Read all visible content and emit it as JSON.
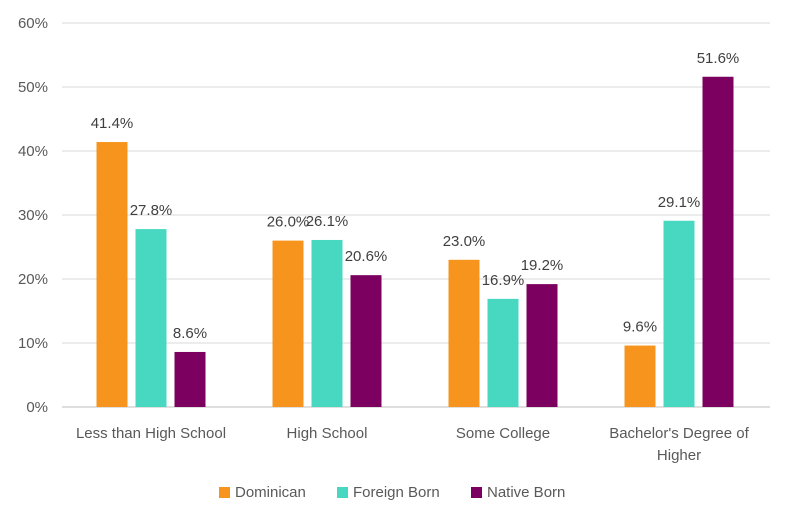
{
  "chart_data": {
    "type": "bar",
    "categories": [
      [
        "Less than High School"
      ],
      [
        "High School"
      ],
      [
        "Some College"
      ],
      [
        "Bachelor's  Degree of",
        "Higher"
      ]
    ],
    "series": [
      {
        "name": "Dominican",
        "color": "#F7941D",
        "values": [
          41.4,
          26.0,
          23.0,
          9.6
        ],
        "labels": [
          "41.4%",
          "26.0%",
          "23.0%",
          "9.6%"
        ]
      },
      {
        "name": "Foreign Born",
        "color": "#48D8C2",
        "values": [
          27.8,
          26.1,
          16.9,
          29.1
        ],
        "labels": [
          "27.8%",
          "26.1%",
          "16.9%",
          "29.1%"
        ]
      },
      {
        "name": "Native Born",
        "color": "#7B005F",
        "values": [
          8.6,
          20.6,
          19.2,
          51.6
        ],
        "labels": [
          "8.6%",
          "20.6%",
          "19.2%",
          "51.6%"
        ]
      }
    ],
    "yticks": [
      {
        "value": 0,
        "label": "0%"
      },
      {
        "value": 10,
        "label": "10%"
      },
      {
        "value": 20,
        "label": "20%"
      },
      {
        "value": 30,
        "label": "30%"
      },
      {
        "value": 40,
        "label": "40%"
      },
      {
        "value": 50,
        "label": "50%"
      },
      {
        "value": 60,
        "label": "60%"
      }
    ],
    "ylim": [
      0,
      60
    ],
    "grid": true,
    "legend_position": "bottom",
    "title": "",
    "xlabel": "",
    "ylabel": ""
  }
}
